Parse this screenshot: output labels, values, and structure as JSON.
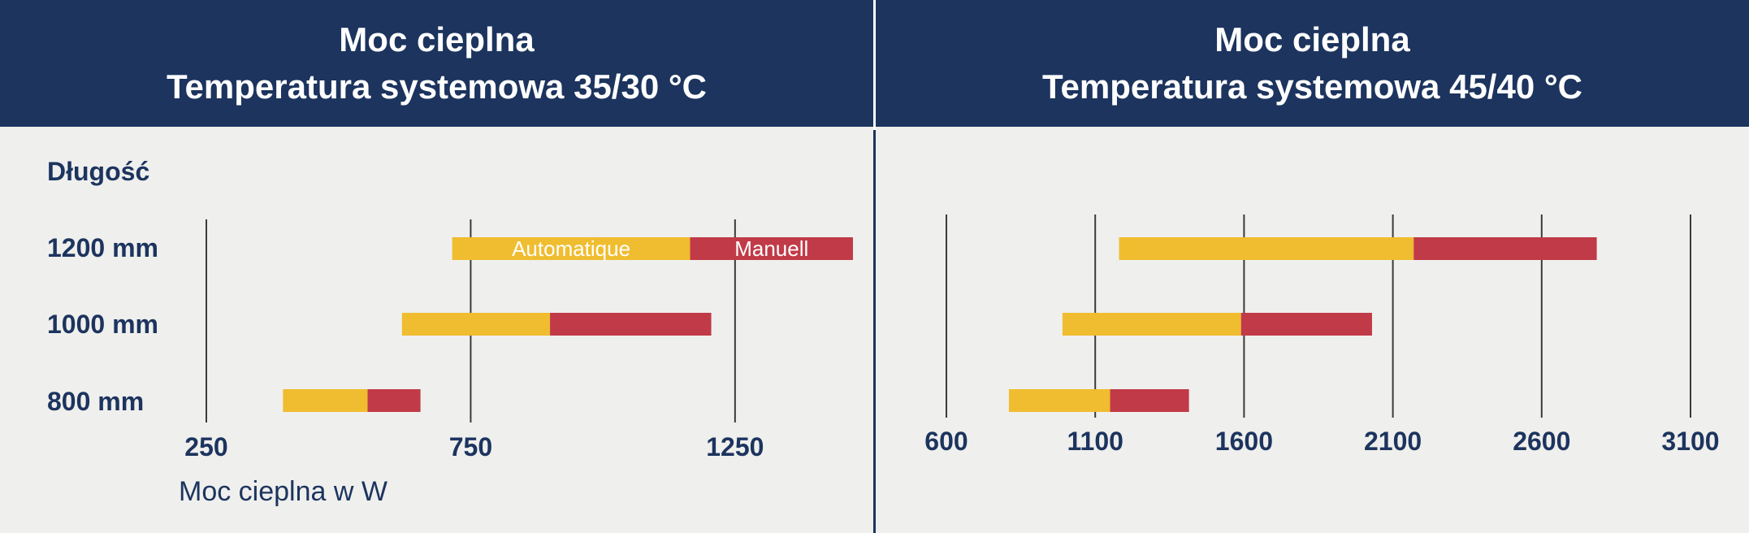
{
  "chart_data": [
    {
      "type": "bar",
      "orientation": "horizontal-range",
      "title_line1": "Moc cieplna",
      "title_line2": "Temperatura systemowa 35/30 °C",
      "ylabel": "Długość",
      "xlabel": "Moc cieplna w W",
      "categories": [
        "1200 mm",
        "1000 mm",
        "800 mm"
      ],
      "xticks": [
        250,
        750,
        1250
      ],
      "xlim": [
        250,
        1450
      ],
      "series": [
        {
          "name": "Automatique",
          "color": "#efbd2f",
          "ranges": [
            [
              715,
              1165
            ],
            [
              620,
              900
            ],
            [
              395,
              555
            ]
          ]
        },
        {
          "name": "Manuell",
          "color": "#c13a48",
          "ranges": [
            [
              1165,
              1473
            ],
            [
              900,
              1205
            ],
            [
              555,
              655
            ]
          ]
        }
      ]
    },
    {
      "type": "bar",
      "orientation": "horizontal-range",
      "title_line1": "Moc cieplna",
      "title_line2": "Temperatura systemowa 45/40 °C",
      "categories": [
        "1200 mm",
        "1000 mm",
        "800 mm"
      ],
      "xticks": [
        600,
        1100,
        1600,
        2100,
        2600,
        3100
      ],
      "xlim": [
        600,
        3100
      ],
      "series": [
        {
          "name": "Automatique",
          "ranges": [
            [
              1180,
              2170
            ],
            [
              990,
              1590
            ],
            [
              810,
              1150
            ]
          ]
        },
        {
          "name": "Manuell",
          "ranges": [
            [
              2170,
              2785
            ],
            [
              1590,
              2030
            ],
            [
              1150,
              1415
            ]
          ]
        }
      ]
    }
  ]
}
